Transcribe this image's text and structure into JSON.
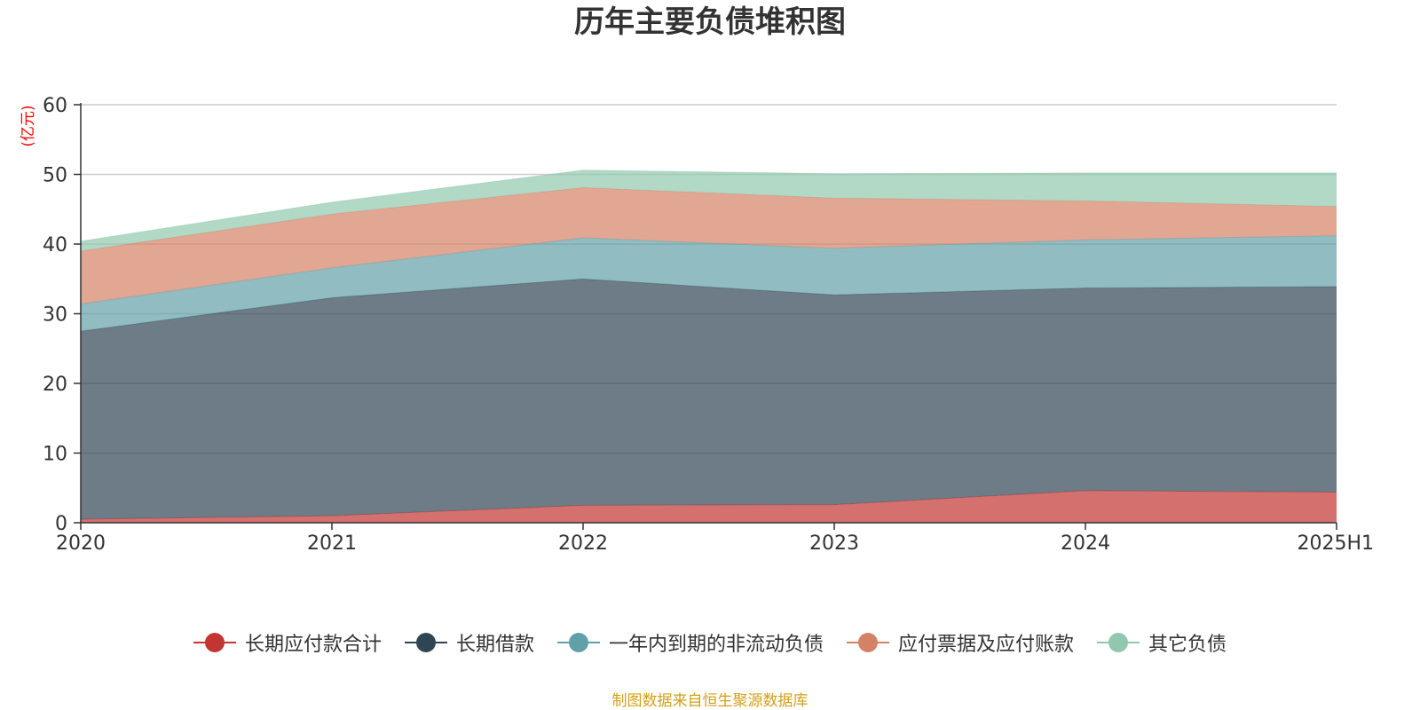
{
  "chart_data": {
    "type": "area",
    "title": "历年主要负债堆积图",
    "ylabel": "(亿元)",
    "categories": [
      "2020",
      "2021",
      "2022",
      "2023",
      "2024",
      "2025H1"
    ],
    "ylim": [
      0,
      60
    ],
    "yticks": [
      0,
      10,
      20,
      30,
      40,
      50,
      60
    ],
    "stacked": true,
    "grid": true,
    "legend_position": "bottom",
    "series": [
      {
        "name": "长期应付款合计",
        "color": "#c23531",
        "values": [
          0.5,
          1.0,
          2.5,
          2.6,
          4.6,
          4.4
        ]
      },
      {
        "name": "长期借款",
        "color": "#2f4554",
        "values": [
          27.0,
          31.3,
          32.5,
          30.1,
          29.1,
          29.5
        ]
      },
      {
        "name": "一年内到期的非流动负债",
        "color": "#61a0a8",
        "values": [
          3.9,
          4.3,
          5.9,
          6.7,
          6.9,
          7.3
        ]
      },
      {
        "name": "应付票据及应付账款",
        "color": "#d48265",
        "values": [
          7.6,
          7.7,
          7.2,
          7.2,
          5.6,
          4.2
        ]
      },
      {
        "name": "其它负债",
        "color": "#91c7ae",
        "values": [
          1.4,
          1.7,
          2.5,
          3.5,
          4.0,
          4.8
        ]
      }
    ]
  },
  "footer": {
    "source": "制图数据来自恒生聚源数据库"
  }
}
